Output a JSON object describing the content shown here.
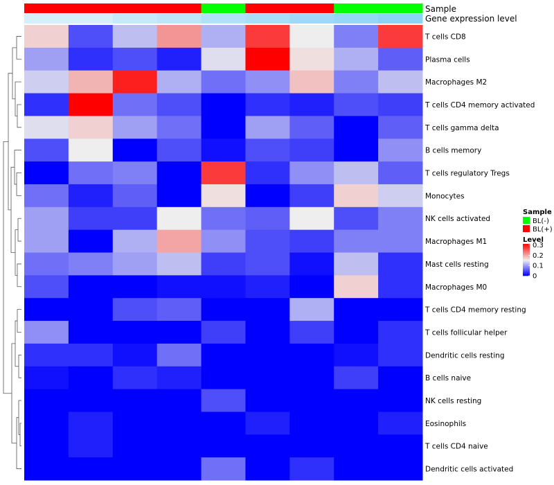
{
  "chart_data": {
    "type": "heatmap",
    "title": "",
    "annotation_labels": {
      "sample": "Sample",
      "expression": "Gene expression level"
    },
    "sample_groups": [
      "BL(+)",
      "BL(+)",
      "BL(+)",
      "BL(+)",
      "BL(-)",
      "BL(+)",
      "BL(+)",
      "BL(-)",
      "BL(-)"
    ],
    "sample_expression_level": [
      0.06,
      0.06,
      0.09,
      0.11,
      0.14,
      0.16,
      0.18,
      0.2,
      0.22
    ],
    "rows": [
      "T cells CD8",
      "Plasma cells",
      "Macrophages M2",
      "T cells CD4 memory activated",
      "T cells gamma delta",
      "B cells memory",
      "T cells regulatory  Tregs",
      "Monocytes",
      "NK cells activated",
      "Macrophages M1",
      "Mast cells resting",
      "Macrophages M0",
      "T cells CD4 memory resting",
      "T cells follicular helper",
      "Dendritic cells resting",
      "B cells naive",
      "NK cells resting",
      "Eosinophils",
      "T cells CD4 naive",
      "Dendritic cells activated"
    ],
    "values": [
      [
        0.17,
        0.05,
        0.12,
        0.21,
        0.11,
        0.27,
        0.15,
        0.08,
        0.27
      ],
      [
        0.1,
        0.03,
        0.05,
        0.02,
        0.14,
        0.31,
        0.16,
        0.11,
        0.06
      ],
      [
        0.13,
        0.19,
        0.29,
        0.11,
        0.07,
        0.09,
        0.18,
        0.08,
        0.12
      ],
      [
        0.03,
        0.31,
        0.07,
        0.05,
        0.0,
        0.03,
        0.02,
        0.05,
        0.04
      ],
      [
        0.14,
        0.17,
        0.1,
        0.07,
        0.0,
        0.1,
        0.06,
        0.0,
        0.06
      ],
      [
        0.05,
        0.15,
        0.0,
        0.05,
        0.01,
        0.05,
        0.04,
        0.0,
        0.09
      ],
      [
        0.0,
        0.07,
        0.08,
        0.0,
        0.27,
        0.03,
        0.09,
        0.12,
        0.06
      ],
      [
        0.07,
        0.02,
        0.06,
        0.0,
        0.16,
        0.0,
        0.04,
        0.17,
        0.13
      ],
      [
        0.1,
        0.04,
        0.04,
        0.15,
        0.07,
        0.06,
        0.15,
        0.05,
        0.08
      ],
      [
        0.1,
        0.0,
        0.11,
        0.2,
        0.09,
        0.05,
        0.04,
        0.08,
        0.08
      ],
      [
        0.07,
        0.08,
        0.1,
        0.12,
        0.04,
        0.05,
        0.01,
        0.12,
        0.03
      ],
      [
        0.05,
        0.0,
        0.0,
        0.01,
        0.01,
        0.02,
        0.0,
        0.17,
        0.03
      ],
      [
        0.0,
        0.0,
        0.05,
        0.06,
        0.0,
        0.0,
        0.11,
        0.0,
        0.0
      ],
      [
        0.09,
        0.0,
        0.0,
        0.0,
        0.04,
        0.0,
        0.04,
        0.0,
        0.03
      ],
      [
        0.03,
        0.03,
        0.01,
        0.07,
        0.0,
        0.0,
        0.0,
        0.01,
        0.03
      ],
      [
        0.01,
        0.0,
        0.03,
        0.02,
        0.0,
        0.0,
        0.0,
        0.04,
        0.0
      ],
      [
        0.0,
        0.0,
        0.0,
        0.0,
        0.05,
        0.0,
        0.0,
        0.0,
        0.0
      ],
      [
        0.0,
        0.02,
        0.0,
        0.0,
        0.0,
        0.02,
        0.0,
        0.0,
        0.02
      ],
      [
        0.0,
        0.02,
        0.0,
        0.0,
        0.0,
        0.0,
        0.0,
        0.0,
        0.0
      ],
      [
        0.0,
        0.0,
        0.0,
        0.0,
        0.07,
        0.0,
        0.03,
        0.0,
        0.0
      ]
    ],
    "color_scale": {
      "min": 0,
      "mid": 0.15,
      "max": 0.31,
      "low_color": "#0000ff",
      "mid_color": "#eeeeee",
      "high_color": "#ff0000"
    },
    "legends": {
      "sample": {
        "title": "Sample",
        "items": [
          {
            "label": "BL(-)",
            "color": "#00ff00"
          },
          {
            "label": "BL(+)",
            "color": "#ff0000"
          }
        ]
      },
      "level": {
        "title": "Level",
        "ticks": [
          {
            "value": 0.3,
            "label": "0.3"
          },
          {
            "value": 0.2,
            "label": "0.2"
          },
          {
            "value": 0.1,
            "label": "0.1"
          },
          {
            "value": 0,
            "label": "0"
          }
        ]
      }
    },
    "expression_scale": {
      "min": 0.0,
      "max": 0.3,
      "low_color": "#f1f9fd",
      "high_color": "#66c6f3"
    },
    "dendrogram": "row clustering tree on the left"
  }
}
